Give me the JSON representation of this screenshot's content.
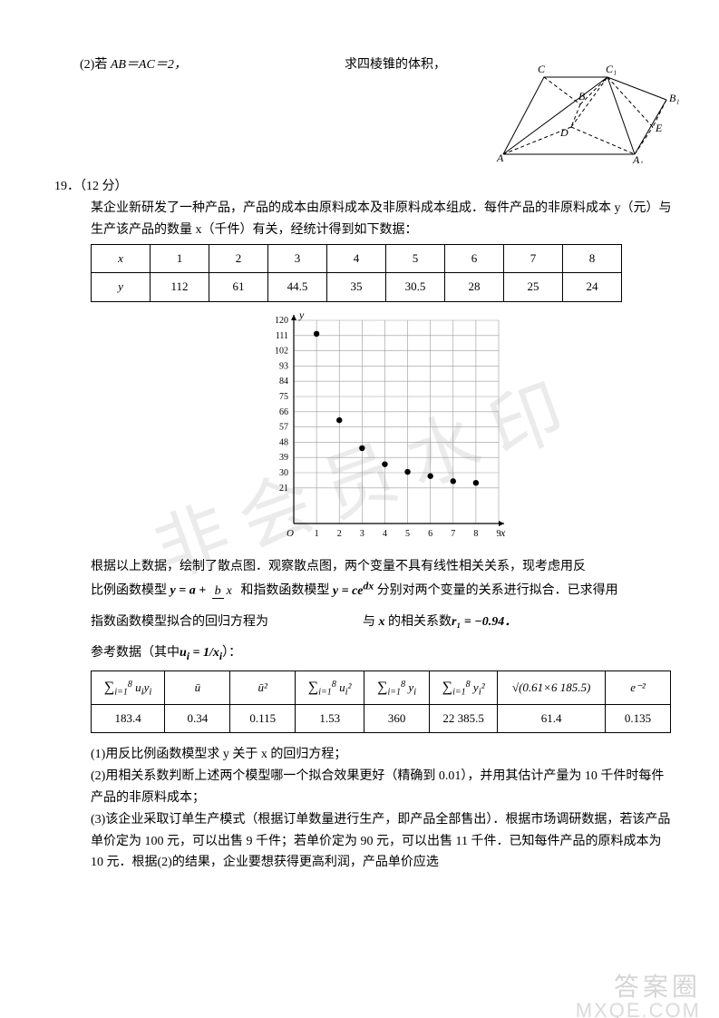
{
  "q18_part2": {
    "prefix": "(2)若 ",
    "condition": "AB＝AC＝2，",
    "suffix": "求四棱锥的体积，"
  },
  "geom_diagram": {
    "colors": {
      "stroke": "#000000"
    },
    "labels": [
      "A",
      "B",
      "C",
      "D",
      "E",
      "A₁",
      "B₁",
      "C₁"
    ]
  },
  "q19": {
    "number": "19．（12 分）",
    "intro1": "某企业新研发了一种产品，产品的成本由原料成本及非原料成本组成．每件产品的非原料成本 y（元）与生产该产品的数量 x（千件）有关，经统计得到如下数据：",
    "table1": {
      "header": [
        "x",
        "1",
        "2",
        "3",
        "4",
        "5",
        "6",
        "7",
        "8"
      ],
      "row": [
        "y",
        "112",
        "61",
        "44.5",
        "35",
        "30.5",
        "28",
        "25",
        "24"
      ]
    },
    "scatter": {
      "bg": "#ffffff",
      "grid_color": "#9a9a9a",
      "axis_color": "#000000",
      "point_color": "#000000",
      "x_range": [
        0,
        9
      ],
      "x_ticks": [
        1,
        2,
        3,
        4,
        5,
        6,
        7,
        8,
        9
      ],
      "y_range": [
        0,
        120
      ],
      "y_ticks": [
        21,
        30,
        39,
        48,
        57,
        66,
        75,
        84,
        93,
        102,
        111,
        120
      ],
      "points": [
        {
          "x": 1,
          "y": 112
        },
        {
          "x": 2,
          "y": 61
        },
        {
          "x": 3,
          "y": 44.5
        },
        {
          "x": 4,
          "y": 35
        },
        {
          "x": 5,
          "y": 30.5
        },
        {
          "x": 6,
          "y": 28
        },
        {
          "x": 7,
          "y": 25
        },
        {
          "x": 8,
          "y": 24
        }
      ],
      "point_radius": 3.2,
      "x_label": "x",
      "y_label": "y",
      "origin_label": "O"
    },
    "text2_a": "根据以上数据，绘制了散点图．观察散点图，两个变量不具有线性相关关系，现考虑用反",
    "text2_b_prefix": "比例函数模型",
    "text2_b_model1": "y = a + b/x",
    "text2_b_mid": "和指数函数模型",
    "text2_b_model2": "y = ce^{dx}",
    "text2_b_suffix": "分别对两个变量的关系进行拟合．已求得用",
    "text3_left": "指数函数模型拟合的回归方程为",
    "text3_right_prefix": "与",
    "text3_right_mid": " 的相关系数",
    "text3_r": "r₁ = −0.94．",
    "text4_prefix": "参考数据（其中",
    "text4_u": "uᵢ = 1/xᵢ",
    "text4_suffix": "）：",
    "ref_table": {
      "headers": [
        "∑ᵢ₌₁⁸ uᵢyᵢ",
        "ū",
        "ū²",
        "∑ᵢ₌₁⁸ uᵢ²",
        "∑ᵢ₌₁⁸ yᵢ",
        "∑ᵢ₌₁⁸ yᵢ²",
        "√(0.61×6 185.5)",
        "e⁻²"
      ],
      "values": [
        "183.4",
        "0.34",
        "0.115",
        "1.53",
        "360",
        "22 385.5",
        "61.4",
        "0.135"
      ]
    },
    "sub1": "(1)用反比例函数模型求 y 关于 x 的回归方程；",
    "sub2": "(2)用相关系数判断上述两个模型哪一个拟合效果更好（精确到 0.01），并用其估计产量为 10 千件时每件产品的非原料成本；",
    "sub3": "(3)该企业采取订单生产模式（根据订单数量进行生产，即产品全部售出）．根据市场调研数据，若该产品单价定为 100 元，可以出售 9 千件；若单价定为 90 元，可以出售 11 千件．已知每件产品的原料成本为 10 元．根据(2)的结果，企业要想获得更高利润，产品单价应选"
  },
  "watermark": {
    "main": "非会员水印",
    "brand": "答案圈",
    "url": "MXQE.COM"
  }
}
